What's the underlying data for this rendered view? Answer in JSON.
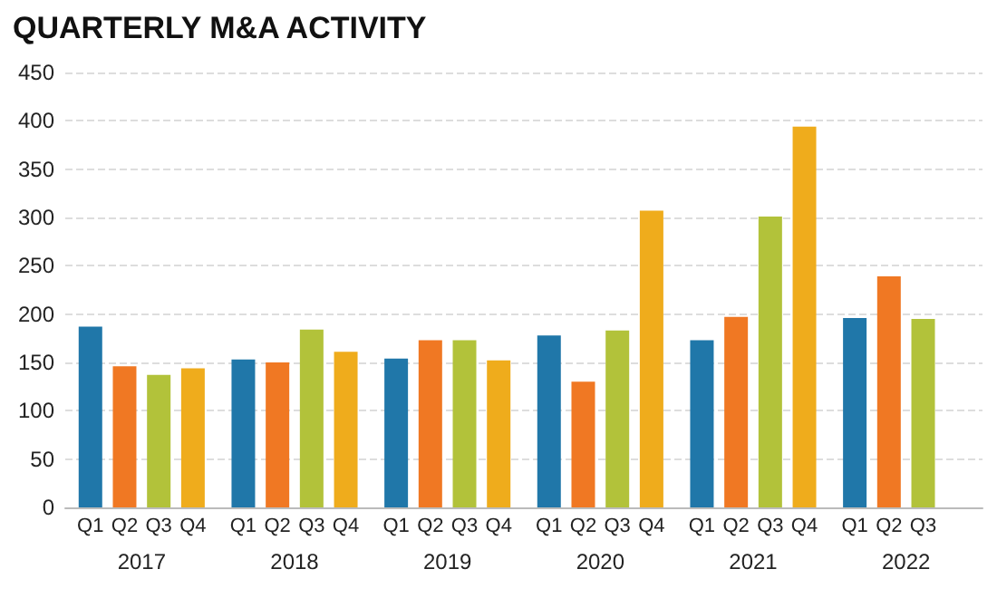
{
  "chart_data": {
    "type": "bar",
    "title": "QUARTERLY M&A ACTIVITY",
    "categories": [
      "2017",
      "2018",
      "2019",
      "2020",
      "2021",
      "2022"
    ],
    "series": [
      {
        "name": "Q1",
        "color": "#2077a9",
        "values": [
          187,
          153,
          154,
          178,
          173,
          196
        ]
      },
      {
        "name": "Q2",
        "color": "#f07823",
        "values": [
          146,
          150,
          173,
          130,
          197,
          239
        ]
      },
      {
        "name": "Q3",
        "color": "#b2c23a",
        "values": [
          137,
          184,
          173,
          183,
          301,
          195
        ]
      },
      {
        "name": "Q4",
        "color": "#efac1c",
        "values": [
          144,
          161,
          152,
          307,
          394,
          null
        ]
      }
    ],
    "ylim": [
      0,
      450
    ],
    "yticks": [
      0,
      50,
      100,
      150,
      200,
      250,
      300,
      350,
      400,
      450
    ],
    "grid": "y"
  }
}
